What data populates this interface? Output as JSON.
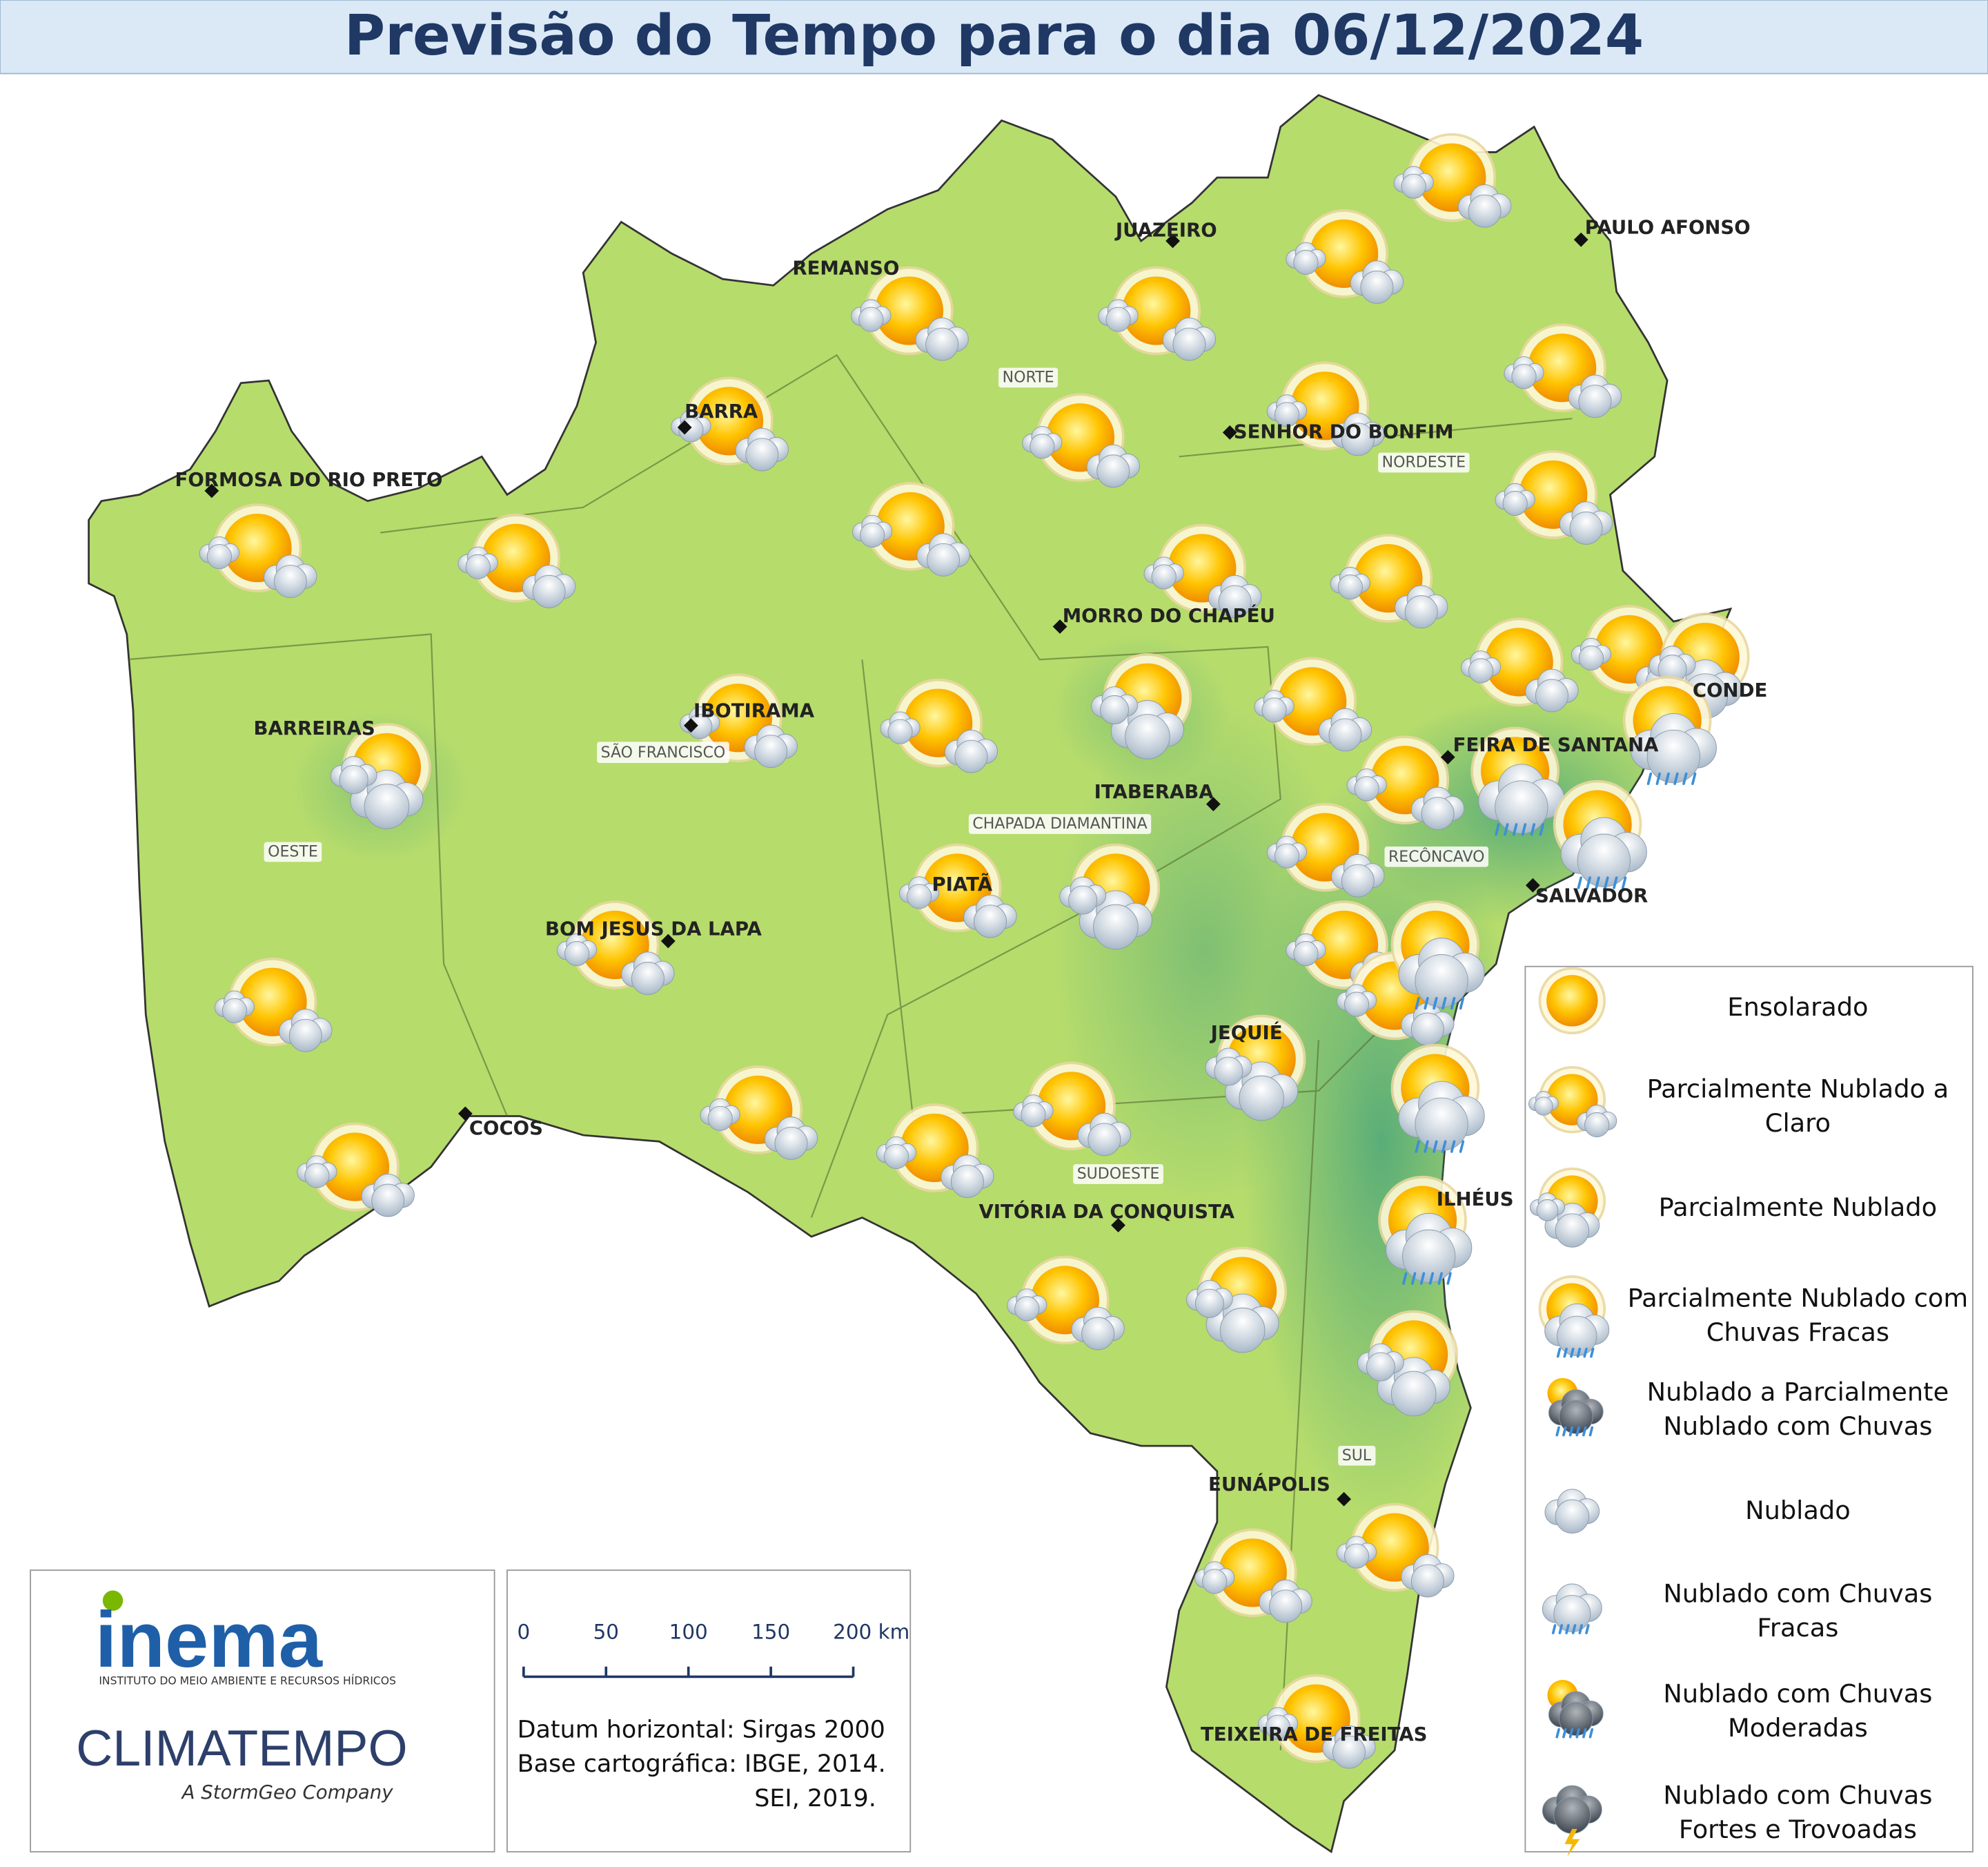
{
  "title": "Previsão do Tempo para o dia 06/12/2024",
  "cities": [
    {
      "name": "PAULO AFONSO"
    },
    {
      "name": "JUAZEIRO"
    },
    {
      "name": "REMANSO"
    },
    {
      "name": "BARRA"
    },
    {
      "name": "SENHOR DO BONFIM"
    },
    {
      "name": "FORMOSA DO RIO PRETO"
    },
    {
      "name": "MORRO DO CHAPÉU"
    },
    {
      "name": "IBOTIRAMA"
    },
    {
      "name": "BARREIRAS"
    },
    {
      "name": "CONDE"
    },
    {
      "name": "FEIRA DE SANTANA"
    },
    {
      "name": "ITABERABA"
    },
    {
      "name": "SALVADOR"
    },
    {
      "name": "PIATÃ"
    },
    {
      "name": "BOM JESUS DA LAPA"
    },
    {
      "name": "JEQUIÉ"
    },
    {
      "name": "COCOS"
    },
    {
      "name": "ILHÉUS"
    },
    {
      "name": "VITÓRIA DA CONQUISTA"
    },
    {
      "name": "EUNÁPOLIS"
    },
    {
      "name": "TEIXEIRA DE FREITAS"
    }
  ],
  "regions": [
    "NORTE",
    "NORDESTE",
    "SÃO FRANCISCO",
    "CHAPADA DIAMANTINA",
    "OESTE",
    "RECÔNCAVO",
    "SUDOESTE",
    "SUL"
  ],
  "legend": [
    {
      "lines": [
        "Ensolarado"
      ]
    },
    {
      "lines": [
        "Parcialmente Nublado a",
        "Claro"
      ]
    },
    {
      "lines": [
        "Parcialmente Nublado"
      ]
    },
    {
      "lines": [
        "Parcialmente Nublado com",
        "Chuvas Fracas"
      ]
    },
    {
      "lines": [
        "Nublado a Parcialmente",
        "Nublado com Chuvas"
      ]
    },
    {
      "lines": [
        "Nublado"
      ]
    },
    {
      "lines": [
        "Nublado com Chuvas",
        "Fracas"
      ]
    },
    {
      "lines": [
        "Nublado com Chuvas",
        "Moderadas"
      ]
    },
    {
      "lines": [
        "Nublado com Chuvas",
        "Fortes e Trovoadas"
      ]
    }
  ],
  "scale_bar": {
    "labels": [
      "0",
      "50",
      "100",
      "150",
      "200 km"
    ]
  },
  "credits": [
    "Datum horizontal: Sirgas 2000",
    "Base cartográfica: IBGE, 2014.",
    "SEI, 2019."
  ],
  "logos": {
    "inema": "inema",
    "inema_sub": "INSTITUTO DO MEIO AMBIENTE E RECURSOS HÍDRICOS",
    "climatempo": "CLIMATEMPO",
    "climatempo_sub": "A StormGeo Company"
  }
}
